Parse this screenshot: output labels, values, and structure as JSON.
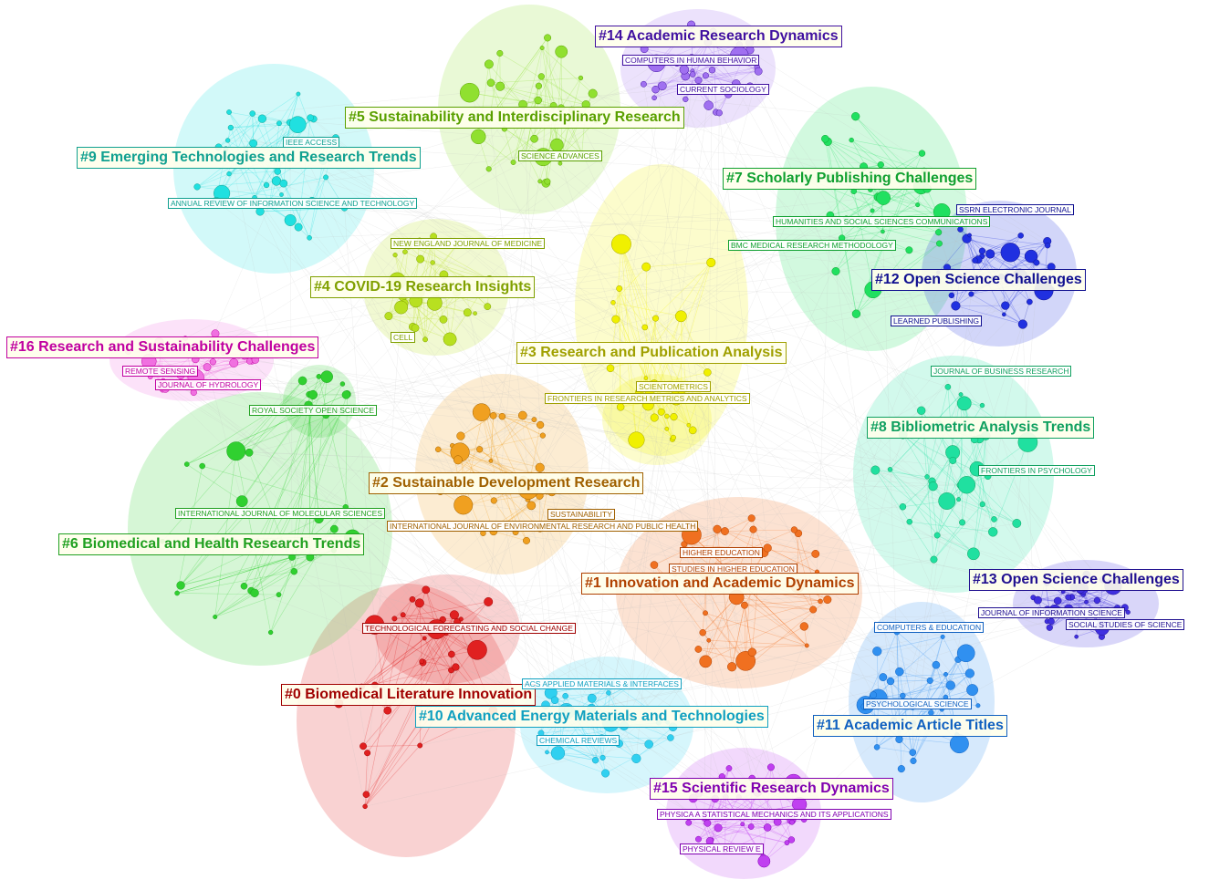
{
  "clusters": [
    {
      "label": "#0 Biomedical Literature Innovation",
      "journals": [
        "TECHNOLOGICAL FORECASTING AND SOCIAL CHANGE"
      ]
    },
    {
      "label": "#1 Innovation and Academic Dynamics",
      "journals": [
        "HIGHER EDUCATION",
        "STUDIES IN HIGHER EDUCATION"
      ]
    },
    {
      "label": "#2 Sustainable Development Research",
      "journals": [
        "SUSTAINABILITY",
        "INTERNATIONAL JOURNAL OF ENVIRONMENTAL RESEARCH AND PUBLIC HEALTH"
      ]
    },
    {
      "label": "#3 Research and Publication Analysis",
      "journals": [
        "SCIENTOMETRICS",
        "FRONTIERS IN RESEARCH METRICS AND ANALYTICS"
      ]
    },
    {
      "label": "#4 COVID-19 Research Insights",
      "journals": [
        "NEW ENGLAND JOURNAL OF MEDICINE",
        "CELL"
      ]
    },
    {
      "label": "#5 Sustainability and Interdisciplinary Research",
      "journals": [
        "SCIENCE ADVANCES"
      ]
    },
    {
      "label": "#6 Biomedical and Health Research Trends",
      "journals": [
        "ROYAL SOCIETY OPEN SCIENCE",
        "INTERNATIONAL JOURNAL OF MOLECULAR SCIENCES"
      ]
    },
    {
      "label": "#7 Scholarly Publishing Challenges",
      "journals": [
        "HUMANITIES AND SOCIAL SCIENCES COMMUNICATIONS",
        "BMC MEDICAL RESEARCH METHODOLOGY"
      ]
    },
    {
      "label": "#8 Bibliometric Analysis Trends",
      "journals": [
        "JOURNAL OF BUSINESS RESEARCH",
        "FRONTIERS IN PSYCHOLOGY"
      ]
    },
    {
      "label": "#9 Emerging Technologies and Research Trends",
      "journals": [
        "IEEE ACCESS",
        "ANNUAL REVIEW OF INFORMATION SCIENCE AND TECHNOLOGY"
      ]
    },
    {
      "label": "#10 Advanced Energy Materials and Technologies",
      "journals": [
        "ACS APPLIED MATERIALS & INTERFACES",
        "CHEMICAL REVIEWS"
      ]
    },
    {
      "label": "#11 Academic Article Titles",
      "journals": [
        "COMPUTERS & EDUCATION",
        "PSYCHOLOGICAL SCIENCE"
      ]
    },
    {
      "label": "#12 Open Science Challenges",
      "journals": [
        "SSRN ELECTRONIC JOURNAL",
        "LEARNED PUBLISHING"
      ]
    },
    {
      "label": "#13 Open Science Challenges",
      "journals": [
        "JOURNAL OF INFORMATION SCIENCE",
        "SOCIAL STUDIES OF SCIENCE"
      ]
    },
    {
      "label": "#14 Academic Research Dynamics",
      "journals": [
        "COMPUTERS IN HUMAN BEHAVIOR",
        "CURRENT SOCIOLOGY"
      ]
    },
    {
      "label": "#15 Scientific Research Dynamics",
      "journals": [
        "PHYSICA A STATISTICAL MECHANICS AND ITS APPLICATIONS",
        "PHYSICAL REVIEW E"
      ]
    },
    {
      "label": "#16 Research and Sustainability Challenges",
      "journals": [
        "REMOTE SENSING",
        "JOURNAL OF HYDROLOGY"
      ]
    }
  ]
}
